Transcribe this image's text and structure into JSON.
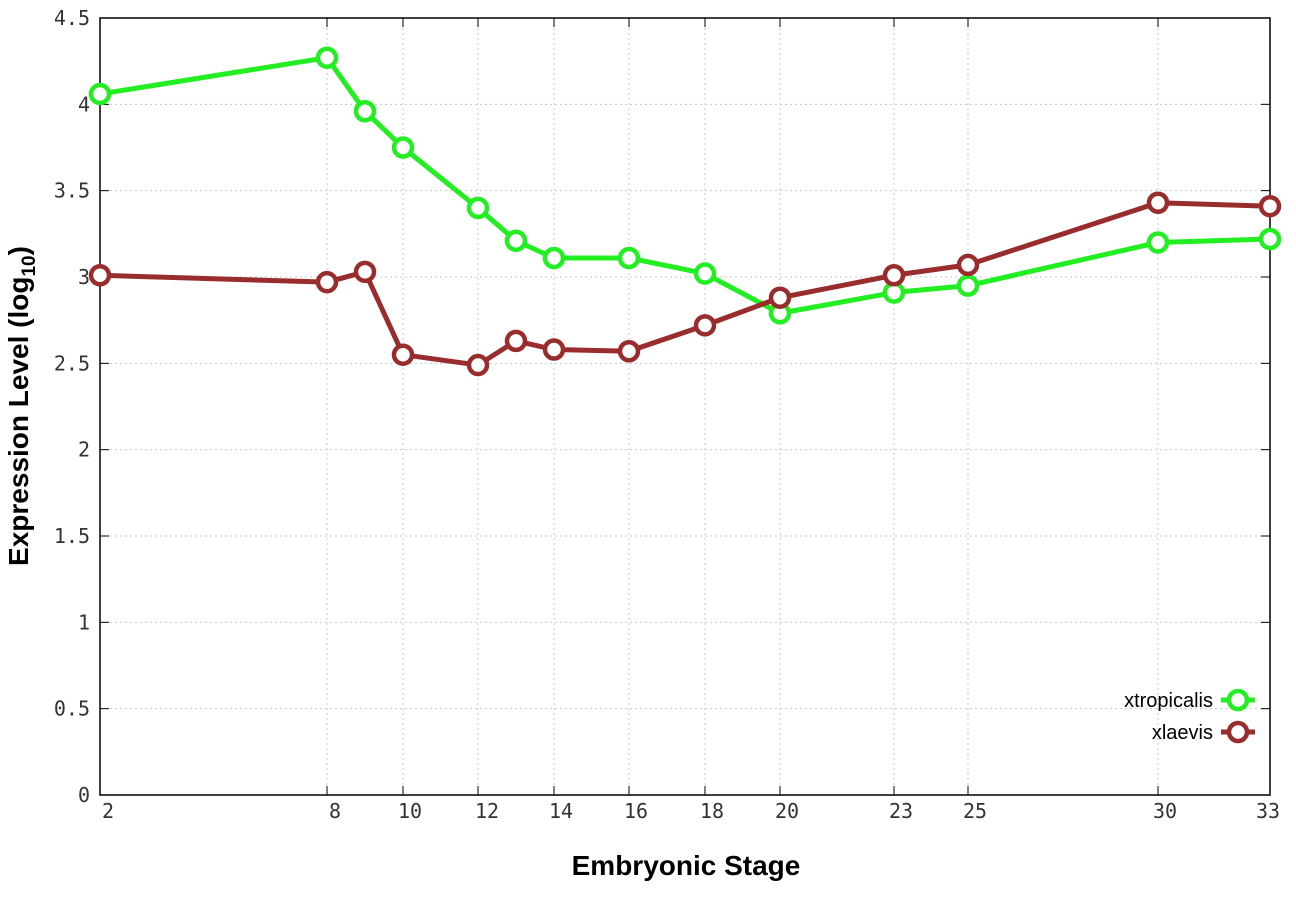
{
  "chart_data": {
    "type": "line",
    "title": "",
    "xlabel": "Embryonic Stage",
    "ylabel_main": "Expression Level (log",
    "ylabel_sub": "10",
    "ylabel_close": ")",
    "ylim": [
      0,
      4.5
    ],
    "xlim": [
      2,
      33
    ],
    "x_axis_scale": "categorical-stage-positions",
    "yticks": [
      "0",
      "0.5",
      "1",
      "1.5",
      "2",
      "2.5",
      "3",
      "3.5",
      "4",
      "4.5"
    ],
    "xticks": [
      "2",
      "8",
      "10",
      "12",
      "14",
      "16",
      "18",
      "20",
      "23",
      "25",
      "30",
      "33"
    ],
    "x": [
      2,
      8,
      9,
      10,
      12,
      13,
      14,
      16,
      18,
      20,
      23,
      25,
      30,
      33
    ],
    "grid": true,
    "legend_position": "bottom-right",
    "series": [
      {
        "name": "xtropicalis",
        "color": "#22ee22",
        "values": [
          4.06,
          4.27,
          3.96,
          3.75,
          3.4,
          3.21,
          3.11,
          3.11,
          3.02,
          2.79,
          2.91,
          2.95,
          3.2,
          3.22
        ]
      },
      {
        "name": "xlaevis",
        "color": "#992c2c",
        "values": [
          3.01,
          2.97,
          3.03,
          2.55,
          2.49,
          2.63,
          2.58,
          2.57,
          2.72,
          2.88,
          3.01,
          3.07,
          3.43,
          3.41
        ]
      }
    ]
  }
}
